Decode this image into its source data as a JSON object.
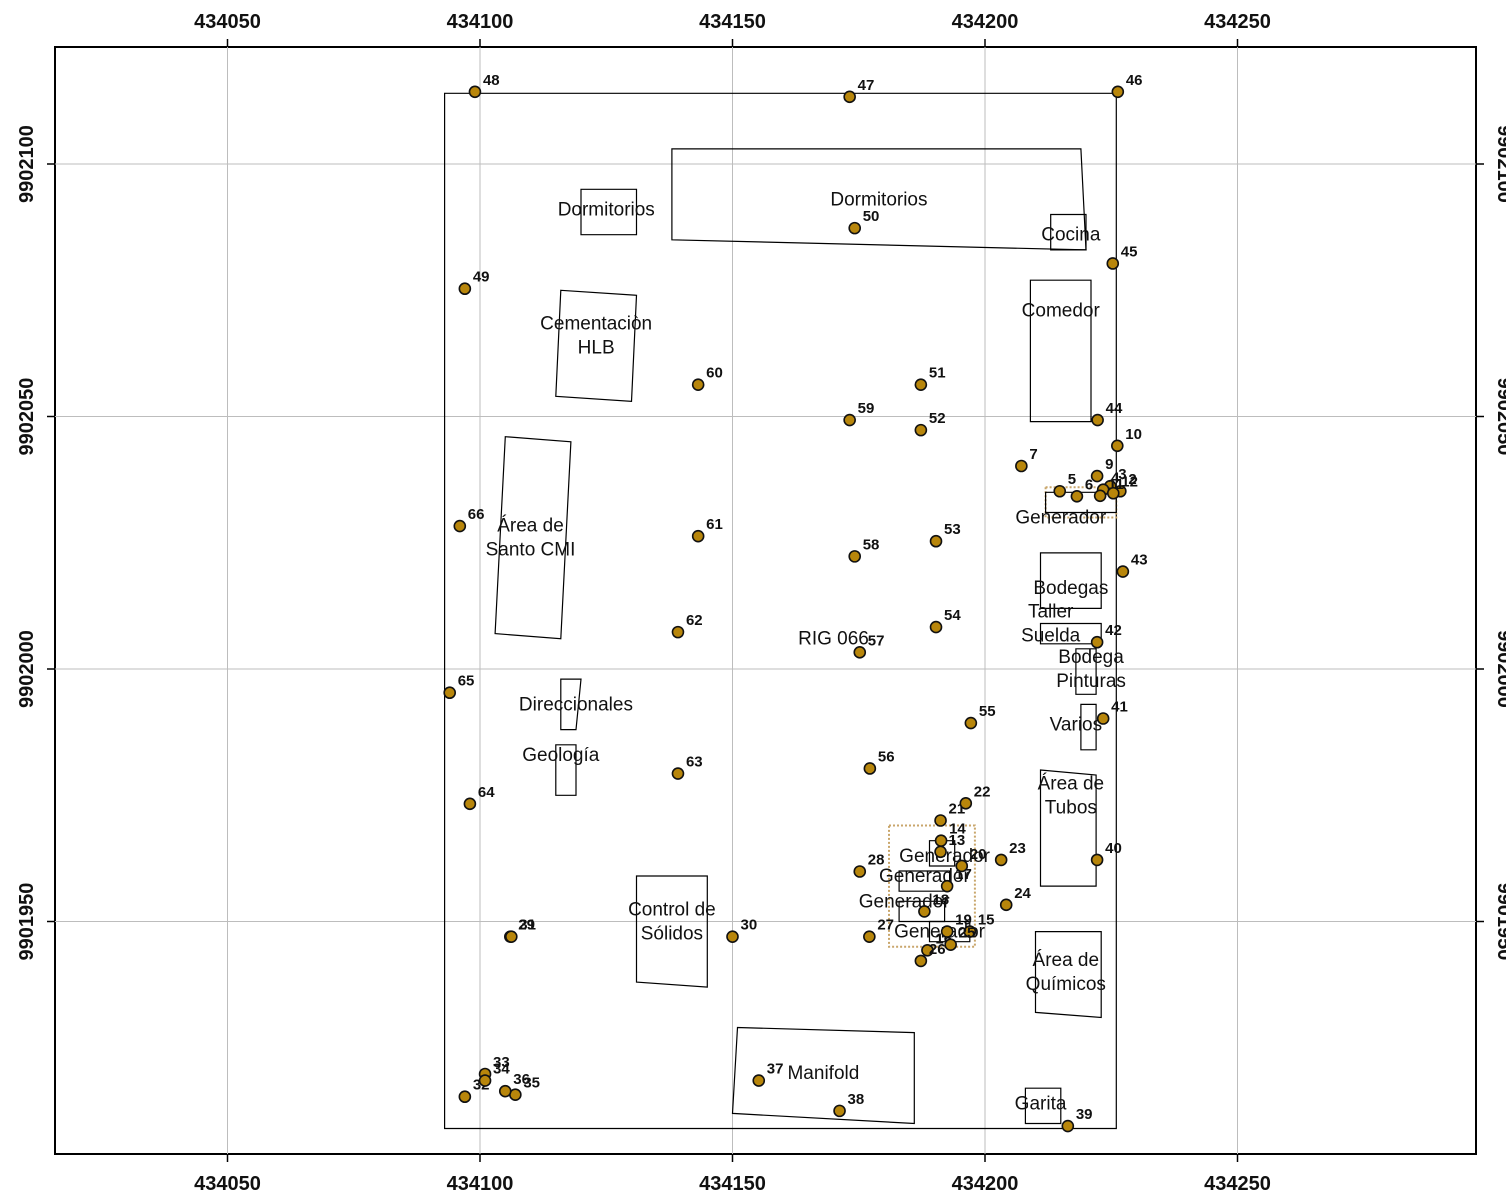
{
  "map": {
    "x_ticks": [
      434050,
      434100,
      434150,
      434200,
      434250
    ],
    "y_ticks": [
      9902100,
      9902050,
      9902000,
      9901950
    ],
    "colors": {
      "point_fill": "#b8860b",
      "point_stroke": "#111111",
      "grid": "#bdbdbd",
      "outline": "#000000",
      "hatch": "#c9a66b"
    },
    "site_boundary": [
      [
        434093,
        9902114
      ],
      [
        434226,
        9902114
      ],
      [
        434226,
        9901909
      ],
      [
        434093,
        9901909
      ]
    ],
    "hatch_areas": [
      {
        "name": "generator-hatch-east",
        "polygon": [
          [
            434212,
            9902036
          ],
          [
            434226,
            9902036
          ],
          [
            434226,
            9902030
          ],
          [
            434212,
            9902030
          ]
        ]
      },
      {
        "name": "generator-hatch-south",
        "polygon": [
          [
            434181,
            9901969
          ],
          [
            434198,
            9901969
          ],
          [
            434198,
            9901945
          ],
          [
            434181,
            9901945
          ]
        ]
      }
    ],
    "buildings": [
      {
        "name": "building-dormitorios-small",
        "label": [
          "Dormitorios"
        ],
        "polygon": [
          [
            434120,
            9902095
          ],
          [
            434131,
            9902095
          ],
          [
            434131,
            9902086
          ],
          [
            434120,
            9902086
          ]
        ],
        "label_at": [
          434125,
          9902091
        ]
      },
      {
        "name": "building-dormitorios-large",
        "label": [
          "Dormitorios"
        ],
        "polygon": [
          [
            434138,
            9902103
          ],
          [
            434219,
            9902103
          ],
          [
            434220,
            9902083
          ],
          [
            434138,
            9902085
          ]
        ],
        "label_at": [
          434179,
          9902093
        ]
      },
      {
        "name": "building-cocina",
        "label": [
          "Cocina"
        ],
        "polygon": [
          [
            434213,
            9902090
          ],
          [
            434220,
            9902090
          ],
          [
            434220,
            9902083
          ],
          [
            434213,
            9902083
          ]
        ],
        "label_at": [
          434217,
          9902086
        ]
      },
      {
        "name": "building-comedor",
        "label": [
          "Comedor"
        ],
        "polygon": [
          [
            434209,
            9902077
          ],
          [
            434221,
            9902077
          ],
          [
            434221,
            9902049
          ],
          [
            434209,
            9902049
          ]
        ],
        "label_at": [
          434215,
          9902071
        ]
      },
      {
        "name": "building-cementacion",
        "label": [
          "Cementaciòn",
          "HLB"
        ],
        "polygon": [
          [
            434116,
            9902075
          ],
          [
            434131,
            9902074
          ],
          [
            434130,
            9902053
          ],
          [
            434115,
            9902054
          ]
        ],
        "label_at": [
          434123,
          9902066
        ]
      },
      {
        "name": "building-area-santo",
        "label": [
          "Área de",
          "Santo CMI"
        ],
        "polygon": [
          [
            434105,
            9902046
          ],
          [
            434118,
            9902045
          ],
          [
            434116,
            9902006
          ],
          [
            434103,
            9902007
          ]
        ],
        "label_at": [
          434110,
          9902026
        ]
      },
      {
        "name": "building-generador-east",
        "label": [
          "Generador"
        ],
        "polygon": [
          [
            434212,
            9902035
          ],
          [
            434226,
            9902035
          ],
          [
            434226,
            9902031
          ],
          [
            434212,
            9902031
          ]
        ],
        "label_at": [
          434215,
          9902030
        ]
      },
      {
        "name": "building-bodegas",
        "label": [
          "Bodegas"
        ],
        "polygon": [
          [
            434211,
            9902023
          ],
          [
            434223,
            9902023
          ],
          [
            434223,
            9902012
          ],
          [
            434211,
            9902012
          ]
        ],
        "label_at": [
          434217,
          9902016
        ]
      },
      {
        "name": "building-taller-suelda",
        "label": [
          "Taller",
          "Suelda"
        ],
        "polygon": [
          [
            434211,
            9902009
          ],
          [
            434223,
            9902009
          ],
          [
            434223,
            9902005
          ],
          [
            434211,
            9902005
          ]
        ],
        "label_at": [
          434213,
          9902009
        ]
      },
      {
        "name": "building-bodega-pinturas",
        "label": [
          "Bodega",
          "Pinturas"
        ],
        "polygon": [
          [
            434218,
            9902004
          ],
          [
            434222,
            9902004
          ],
          [
            434222,
            9901995
          ],
          [
            434218,
            9901995
          ]
        ],
        "label_at": [
          434221,
          9902000
        ]
      },
      {
        "name": "building-varios",
        "label": [
          "Varios"
        ],
        "polygon": [
          [
            434219,
            9901993
          ],
          [
            434222,
            9901993
          ],
          [
            434222,
            9901984
          ],
          [
            434219,
            9901984
          ]
        ],
        "label_at": [
          434218,
          9901989
        ]
      },
      {
        "name": "building-direccionales",
        "label": [
          "Direccionales"
        ],
        "polygon": [
          [
            434116,
            9901998
          ],
          [
            434120,
            9901998
          ],
          [
            434119,
            9901988
          ],
          [
            434116,
            9901988
          ]
        ],
        "label_at": [
          434119,
          9901993
        ]
      },
      {
        "name": "building-geologia",
        "label": [
          "Geología"
        ],
        "polygon": [
          [
            434115,
            9901985
          ],
          [
            434119,
            9901985
          ],
          [
            434119,
            9901975
          ],
          [
            434115,
            9901975
          ]
        ],
        "label_at": [
          434116,
          9901983
        ]
      },
      {
        "name": "building-area-tubos",
        "label": [
          "Área de",
          "Tubos"
        ],
        "polygon": [
          [
            434211,
            9901980
          ],
          [
            434222,
            9901979
          ],
          [
            434222,
            9901957
          ],
          [
            434211,
            9901957
          ]
        ],
        "label_at": [
          434217,
          9901975
        ]
      },
      {
        "name": "building-generador-south-1",
        "label": [
          "Generador"
        ],
        "polygon": [
          [
            434189,
            9901966
          ],
          [
            434194,
            9901966
          ],
          [
            434194,
            9901961
          ],
          [
            434189,
            9901961
          ]
        ],
        "label_at": [
          434192,
          9901963
        ]
      },
      {
        "name": "building-generador-south-2",
        "label": [
          "Generador"
        ],
        "polygon": [
          [
            434183,
            9901960
          ],
          [
            434193,
            9901960
          ],
          [
            434193,
            9901956
          ],
          [
            434183,
            9901956
          ]
        ],
        "label_at": [
          434188,
          9901959
        ]
      },
      {
        "name": "building-generador-south-3",
        "label": [
          "Generador"
        ],
        "polygon": [
          [
            434183,
            9901954
          ],
          [
            434192,
            9901954
          ],
          [
            434192,
            9901950
          ],
          [
            434183,
            9901950
          ]
        ],
        "label_at": [
          434184,
          9901954
        ]
      },
      {
        "name": "building-generador-south-4",
        "label": [
          "Generador"
        ],
        "polygon": [
          [
            434189,
            9901950
          ],
          [
            434197,
            9901950
          ],
          [
            434197,
            9901946
          ],
          [
            434189,
            9901946
          ]
        ],
        "label_at": [
          434191,
          9901948
        ]
      },
      {
        "name": "building-control-solidos",
        "label": [
          "Control de",
          "Sólidos"
        ],
        "polygon": [
          [
            434131,
            9901959
          ],
          [
            434145,
            9901959
          ],
          [
            434145,
            9901937
          ],
          [
            434131,
            9901938
          ]
        ],
        "label_at": [
          434138,
          9901950
        ]
      },
      {
        "name": "building-area-quimicos",
        "label": [
          "Área  de",
          "Químicos"
        ],
        "polygon": [
          [
            434210,
            9901948
          ],
          [
            434223,
            9901948
          ],
          [
            434223,
            9901931
          ],
          [
            434210,
            9901932
          ]
        ],
        "label_at": [
          434216,
          9901940
        ]
      },
      {
        "name": "building-manifold",
        "label": [
          "Manifold"
        ],
        "polygon": [
          [
            434151,
            9901929
          ],
          [
            434186,
            9901928
          ],
          [
            434186,
            9901910
          ],
          [
            434150,
            9901912
          ]
        ],
        "label_at": [
          434168,
          9901920
        ]
      },
      {
        "name": "building-garita",
        "label": [
          "Garita"
        ],
        "polygon": [
          [
            434208,
            9901917
          ],
          [
            434215,
            9901917
          ],
          [
            434215,
            9901910
          ],
          [
            434208,
            9901910
          ]
        ],
        "label_at": [
          434211,
          9901914
        ]
      },
      {
        "name": "building-rig",
        "label": [
          "RIG 066"
        ],
        "polygon": [],
        "label_at": [
          434170,
          9902006
        ]
      }
    ],
    "points": [
      {
        "id": "2",
        "x": 434226.8,
        "y": 9902035.2
      },
      {
        "id": "3",
        "x": 434224.8,
        "y": 9902036.2
      },
      {
        "id": "4",
        "x": 434223.4,
        "y": 9902035.5
      },
      {
        "id": "5",
        "x": 434214.8,
        "y": 9902035.2
      },
      {
        "id": "6",
        "x": 434218.2,
        "y": 9902034.2
      },
      {
        "id": "7",
        "x": 434207.2,
        "y": 9902040.2
      },
      {
        "id": "9",
        "x": 434222.2,
        "y": 9902038.2
      },
      {
        "id": "10",
        "x": 434226.2,
        "y": 9902044.2
      },
      {
        "id": "11",
        "x": 434222.8,
        "y": 9902034.3
      },
      {
        "id": "12",
        "x": 434225.4,
        "y": 9902034.8
      },
      {
        "id": "13",
        "x": 434191.2,
        "y": 9901963.8
      },
      {
        "id": "14",
        "x": 434191.3,
        "y": 9901966.0
      },
      {
        "id": "15",
        "x": 434197.0,
        "y": 9901948.0
      },
      {
        "id": "16",
        "x": 434188.6,
        "y": 9901944.3
      },
      {
        "id": "17",
        "x": 434192.5,
        "y": 9901957.0
      },
      {
        "id": "18",
        "x": 434188.0,
        "y": 9901952.0
      },
      {
        "id": "19",
        "x": 434192.5,
        "y": 9901948.0
      },
      {
        "id": "20",
        "x": 434195.4,
        "y": 9901961.0
      },
      {
        "id": "21",
        "x": 434191.2,
        "y": 9901970.0
      },
      {
        "id": "22",
        "x": 434196.2,
        "y": 9901973.4
      },
      {
        "id": "23",
        "x": 434203.2,
        "y": 9901962.2
      },
      {
        "id": "24",
        "x": 434204.2,
        "y": 9901953.3
      },
      {
        "id": "25",
        "x": 434193.2,
        "y": 9901945.4
      },
      {
        "id": "26",
        "x": 434187.3,
        "y": 9901942.2
      },
      {
        "id": "27",
        "x": 434177.1,
        "y": 9901947.0
      },
      {
        "id": "28",
        "x": 434175.2,
        "y": 9901959.9
      },
      {
        "id": "29",
        "x": 434106.0,
        "y": 9901947.0
      },
      {
        "id": "30",
        "x": 434150.0,
        "y": 9901947.0
      },
      {
        "id": "31",
        "x": 434106.2,
        "y": 9901947.0
      },
      {
        "id": "32",
        "x": 434097.0,
        "y": 9901915.3
      },
      {
        "id": "33",
        "x": 434101.0,
        "y": 9901919.8
      },
      {
        "id": "34",
        "x": 434101.0,
        "y": 9901918.5
      },
      {
        "id": "35",
        "x": 434107.0,
        "y": 9901915.7
      },
      {
        "id": "36",
        "x": 434105.0,
        "y": 9901916.4
      },
      {
        "id": "37",
        "x": 434155.2,
        "y": 9901918.5
      },
      {
        "id": "38",
        "x": 434171.2,
        "y": 9901912.5
      },
      {
        "id": "39",
        "x": 434216.4,
        "y": 9901909.5
      },
      {
        "id": "40",
        "x": 434222.2,
        "y": 9901962.2
      },
      {
        "id": "41",
        "x": 434223.4,
        "y": 9901990.2
      },
      {
        "id": "42",
        "x": 434222.2,
        "y": 9902005.3
      },
      {
        "id": "43",
        "x": 434227.3,
        "y": 9902019.3
      },
      {
        "id": "44",
        "x": 434222.3,
        "y": 9902049.3
      },
      {
        "id": "45",
        "x": 434225.3,
        "y": 9902080.3
      },
      {
        "id": "46",
        "x": 434226.3,
        "y": 9902114.3
      },
      {
        "id": "47",
        "x": 434173.2,
        "y": 9902113.3
      },
      {
        "id": "48",
        "x": 434099.0,
        "y": 9902114.3
      },
      {
        "id": "49",
        "x": 434097.0,
        "y": 9902075.3
      },
      {
        "id": "50",
        "x": 434174.2,
        "y": 9902087.3
      },
      {
        "id": "51",
        "x": 434187.3,
        "y": 9902056.3
      },
      {
        "id": "52",
        "x": 434187.3,
        "y": 9902047.3
      },
      {
        "id": "53",
        "x": 434190.3,
        "y": 9902025.3
      },
      {
        "id": "54",
        "x": 434190.3,
        "y": 9902008.3
      },
      {
        "id": "55",
        "x": 434197.2,
        "y": 9901989.3
      },
      {
        "id": "56",
        "x": 434177.2,
        "y": 9901980.3
      },
      {
        "id": "57",
        "x": 434175.2,
        "y": 9902003.3
      },
      {
        "id": "58",
        "x": 434174.2,
        "y": 9902022.3
      },
      {
        "id": "59",
        "x": 434173.2,
        "y": 9902049.3
      },
      {
        "id": "60",
        "x": 434143.2,
        "y": 9902056.3
      },
      {
        "id": "61",
        "x": 434143.2,
        "y": 9902026.3
      },
      {
        "id": "62",
        "x": 434139.2,
        "y": 9902007.3
      },
      {
        "id": "63",
        "x": 434139.2,
        "y": 9901979.3
      },
      {
        "id": "64",
        "x": 434098.0,
        "y": 9901973.3
      },
      {
        "id": "65",
        "x": 434094.0,
        "y": 9901995.3
      },
      {
        "id": "66",
        "x": 434096.0,
        "y": 9902028.3
      }
    ]
  }
}
